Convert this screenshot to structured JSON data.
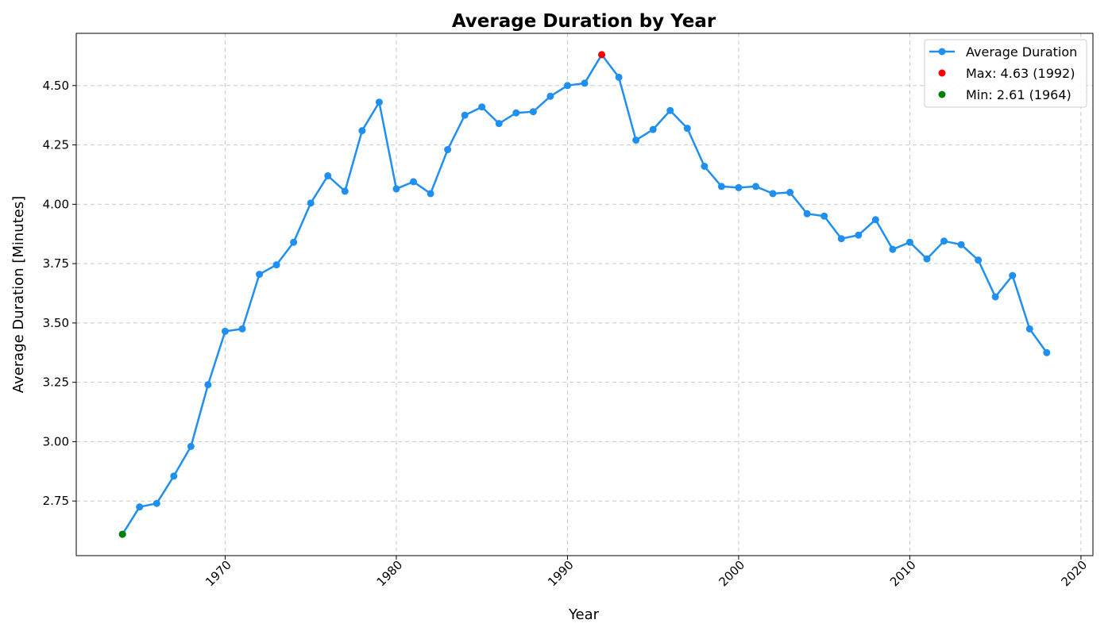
{
  "chart_data": {
    "type": "line",
    "title": "Average Duration by Year",
    "xlabel": "Year",
    "ylabel": "Average Duration [Minutes]",
    "xlim": [
      1961.3,
      2020.7
    ],
    "ylim": [
      2.52,
      4.72
    ],
    "x_ticks": [
      1970,
      1980,
      1990,
      2000,
      2010,
      2020
    ],
    "y_ticks": [
      2.75,
      3.0,
      3.25,
      3.5,
      3.75,
      4.0,
      4.25,
      4.5
    ],
    "y_tick_labels": [
      "2.75",
      "3.00",
      "3.25",
      "3.50",
      "3.75",
      "4.00",
      "4.25",
      "4.50"
    ],
    "x_tick_rotation": 45,
    "grid": true,
    "legend_position": "top-right",
    "series": [
      {
        "name": "Average Duration",
        "color": "#1f8ff0",
        "marker": "circle",
        "x": [
          1964,
          1965,
          1966,
          1967,
          1968,
          1969,
          1970,
          1971,
          1972,
          1973,
          1974,
          1975,
          1976,
          1977,
          1978,
          1979,
          1980,
          1981,
          1982,
          1983,
          1984,
          1985,
          1986,
          1987,
          1988,
          1989,
          1990,
          1991,
          1992,
          1993,
          1994,
          1995,
          1996,
          1997,
          1998,
          1999,
          2000,
          2001,
          2002,
          2003,
          2004,
          2005,
          2006,
          2007,
          2008,
          2009,
          2010,
          2011,
          2012,
          2013,
          2014,
          2015,
          2016,
          2017,
          2018
        ],
        "y": [
          2.61,
          2.725,
          2.74,
          2.855,
          2.98,
          3.24,
          3.465,
          3.475,
          3.705,
          3.745,
          3.84,
          4.005,
          4.12,
          4.055,
          4.31,
          4.43,
          4.065,
          4.095,
          4.045,
          4.23,
          4.375,
          4.41,
          4.34,
          4.385,
          4.39,
          4.455,
          4.5,
          4.51,
          4.63,
          4.535,
          4.27,
          4.315,
          4.395,
          4.32,
          4.16,
          4.075,
          4.07,
          4.075,
          4.045,
          4.05,
          3.96,
          3.95,
          3.855,
          3.87,
          3.935,
          3.81,
          3.84,
          3.77,
          3.845,
          3.83,
          3.765,
          3.61,
          3.7,
          3.475,
          3.375
        ]
      }
    ],
    "annotations": [
      {
        "name": "Max: 4.63 (1992)",
        "x": 1992,
        "y": 4.63,
        "color": "#ff0000"
      },
      {
        "name": "Min: 2.61 (1964)",
        "x": 1964,
        "y": 2.61,
        "color": "#008000"
      }
    ]
  }
}
